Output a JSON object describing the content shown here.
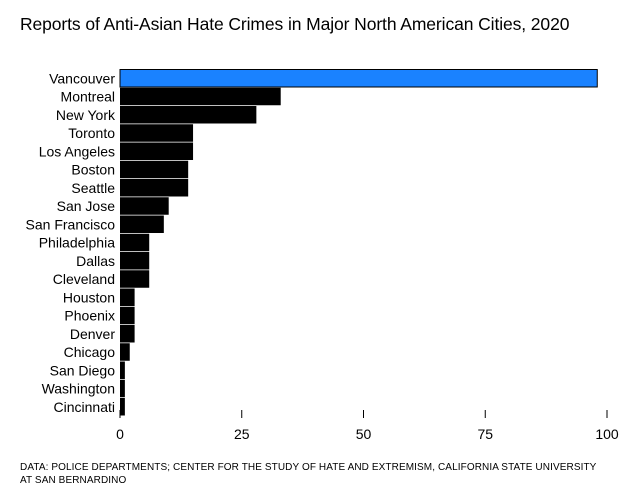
{
  "title": "Reports of Anti-Asian Hate Crimes in Major North American Cities, 2020",
  "source": "DATA: POLICE DEPARTMENTS; CENTER FOR THE STUDY OF HATE AND EXTREMISM, CALIFORNIA STATE UNIVERSITY AT SAN BERNARDINO",
  "colors": {
    "highlight": "#1a82ff",
    "bar": "#000000",
    "highlight_stroke": "#000000"
  },
  "chart_data": {
    "type": "bar",
    "orientation": "horizontal",
    "title": "Reports of Anti-Asian Hate Crimes in Major North American Cities, 2020",
    "categories": [
      "Vancouver",
      "Montreal",
      "New York",
      "Toronto",
      "Los Angeles",
      "Boston",
      "Seattle",
      "San Jose",
      "San Francisco",
      "Philadelphia",
      "Dallas",
      "Cleveland",
      "Houston",
      "Phoenix",
      "Denver",
      "Chicago",
      "San Diego",
      "Washington",
      "Cincinnati"
    ],
    "values": [
      98,
      33,
      28,
      15,
      15,
      14,
      14,
      10,
      9,
      6,
      6,
      6,
      3,
      3,
      3,
      2,
      1,
      1,
      1
    ],
    "highlight": "Vancouver",
    "xlim": [
      0,
      100
    ],
    "xticks": [
      0,
      25,
      50,
      75,
      100
    ],
    "grid": false
  }
}
